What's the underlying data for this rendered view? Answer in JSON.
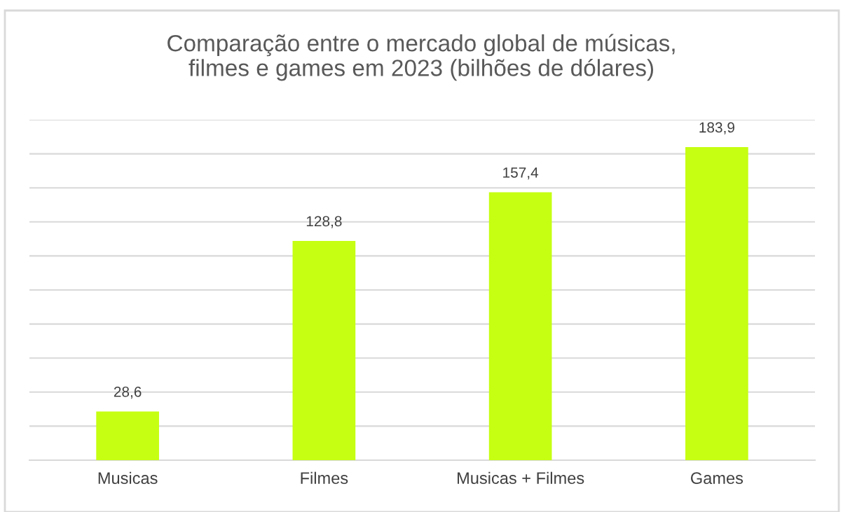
{
  "chart_data": {
    "type": "bar",
    "title": "Comparação entre o mercado global de músicas,\nfilmes e games em 2023 (bilhões de dólares)",
    "categories": [
      "Musicas",
      "Filmes",
      "Musicas + Filmes",
      "Games"
    ],
    "values": [
      28.6,
      128.8,
      157.4,
      183.9
    ],
    "value_labels": [
      "28,6",
      "128,8",
      "157,4",
      "183,9"
    ],
    "color": "#c6ff12",
    "ylim": [
      0,
      200
    ],
    "yticks": [
      {
        "value": 0,
        "label": null
      },
      {
        "value": 20,
        "label": null
      },
      {
        "value": 40,
        "label": null
      },
      {
        "value": 60,
        "label": null
      },
      {
        "value": 80,
        "label": null
      },
      {
        "value": 100,
        "label": null
      },
      {
        "value": 120,
        "label": null
      },
      {
        "value": 140,
        "label": null
      },
      {
        "value": 160,
        "label": null
      },
      {
        "value": 180,
        "label": null
      },
      {
        "value": 200,
        "label": null
      }
    ],
    "tick_labels": "x",
    "grid": "y"
  }
}
